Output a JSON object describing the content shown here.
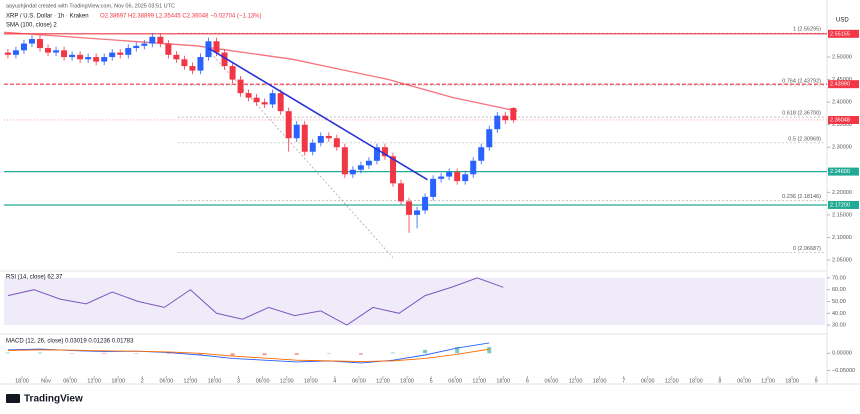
{
  "chart_data": {
    "type": "candlestick",
    "credit": "aayushjindal created with TradingView.com, Nov 06, 2025 03:51 UTC",
    "title": "XRP / U.S. Dollar · 1h · Kraken",
    "ohlc_header": "O2.38697 H2.38899 L2.35445 C2.36048 −0.02704 (−1.13%)",
    "sma_label": "SMA (100, close) 2",
    "currency": "USD",
    "brand": "TradingView",
    "up_color": "#2962ff",
    "down_color": "#f23645",
    "xlim": [
      0,
      204.7
    ],
    "xticks": [
      {
        "value": 4.5,
        "label": "18:00"
      },
      {
        "value": 10.5,
        "label": "Nov"
      },
      {
        "value": 16.5,
        "label": "06:00"
      },
      {
        "value": 22.5,
        "label": "12:00"
      },
      {
        "value": 28.5,
        "label": "18:00"
      },
      {
        "value": 34.5,
        "label": "2"
      },
      {
        "value": 40.5,
        "label": "06:00"
      },
      {
        "value": 46.5,
        "label": "12:00"
      },
      {
        "value": 52.5,
        "label": "18:00"
      },
      {
        "value": 58.5,
        "label": "3"
      },
      {
        "value": 64.5,
        "label": "06:00"
      },
      {
        "value": 70.5,
        "label": "12:00"
      },
      {
        "value": 76.5,
        "label": "18:00"
      },
      {
        "value": 82.5,
        "label": "4"
      },
      {
        "value": 88.5,
        "label": "06:00"
      },
      {
        "value": 94.5,
        "label": "12:00"
      },
      {
        "value": 100.5,
        "label": "18:00"
      },
      {
        "value": 106.5,
        "label": "5"
      },
      {
        "value": 112.5,
        "label": "06:00"
      },
      {
        "value": 118.5,
        "label": "12:00"
      },
      {
        "value": 124.5,
        "label": "18:00"
      },
      {
        "value": 130.5,
        "label": "6"
      },
      {
        "value": 136.5,
        "label": "06:00"
      },
      {
        "value": 142.5,
        "label": "12:00"
      },
      {
        "value": 148.5,
        "label": "18:00"
      },
      {
        "value": 154.5,
        "label": "7"
      },
      {
        "value": 160.5,
        "label": "06:00"
      },
      {
        "value": 166.5,
        "label": "12:00"
      },
      {
        "value": 172.5,
        "label": "18:00"
      },
      {
        "value": 178.5,
        "label": "8"
      },
      {
        "value": 184.5,
        "label": "06:00"
      },
      {
        "value": 190.5,
        "label": "12:00"
      },
      {
        "value": 196.5,
        "label": "18:00"
      },
      {
        "value": 202.5,
        "label": "9"
      }
    ],
    "ylim": [
      2.03,
      2.58
    ],
    "yticks": [
      {
        "value": 2.05,
        "label": "2.05000"
      },
      {
        "value": 2.1,
        "label": "2.10000"
      },
      {
        "value": 2.15,
        "label": "2.15000"
      },
      {
        "value": 2.2,
        "label": "2.20000"
      },
      {
        "value": 2.25,
        "label": "2.25000"
      },
      {
        "value": 2.3,
        "label": "2.30000"
      },
      {
        "value": 2.35,
        "label": "2.35000"
      },
      {
        "value": 2.4,
        "label": "2.40000"
      },
      {
        "value": 2.45,
        "label": "2.45000"
      },
      {
        "value": 2.5,
        "label": "2.50000"
      }
    ],
    "x": [
      1,
      3,
      5,
      7,
      9,
      11,
      13,
      15,
      17,
      19,
      21,
      23,
      25,
      27,
      29,
      31,
      33,
      35,
      37,
      39,
      41,
      43,
      45,
      47,
      49,
      51,
      53,
      55,
      57,
      59,
      61,
      63,
      65,
      67,
      69,
      71,
      73,
      75,
      77,
      79,
      81,
      83,
      85,
      87,
      89,
      91,
      93,
      95,
      97,
      99,
      101,
      103,
      105,
      107,
      109,
      111,
      113,
      115,
      117,
      119,
      121,
      123,
      125,
      127
    ],
    "open": [
      2.51,
      2.505,
      2.515,
      2.53,
      2.54,
      2.52,
      2.51,
      2.515,
      2.5,
      2.505,
      2.495,
      2.5,
      2.49,
      2.5,
      2.51,
      2.505,
      2.52,
      2.525,
      2.53,
      2.545,
      2.53,
      2.505,
      2.495,
      2.48,
      2.47,
      2.5,
      2.535,
      2.51,
      2.48,
      2.45,
      2.42,
      2.41,
      2.4,
      2.395,
      2.42,
      2.38,
      2.32,
      2.35,
      2.29,
      2.31,
      2.325,
      2.32,
      2.3,
      2.24,
      2.25,
      2.26,
      2.27,
      2.3,
      2.28,
      2.22,
      2.18,
      2.15,
      2.16,
      2.19,
      2.23,
      2.235,
      2.245,
      2.225,
      2.24,
      2.27,
      2.3,
      2.34,
      2.37,
      2.387
    ],
    "high": [
      2.518,
      2.523,
      2.538,
      2.548,
      2.548,
      2.528,
      2.523,
      2.523,
      2.513,
      2.513,
      2.508,
      2.508,
      2.508,
      2.518,
      2.518,
      2.528,
      2.533,
      2.538,
      2.553,
      2.553,
      2.538,
      2.513,
      2.503,
      2.488,
      2.508,
      2.543,
      2.543,
      2.518,
      2.488,
      2.458,
      2.428,
      2.418,
      2.408,
      2.428,
      2.428,
      2.388,
      2.358,
      2.358,
      2.318,
      2.333,
      2.333,
      2.328,
      2.308,
      2.258,
      2.268,
      2.278,
      2.308,
      2.308,
      2.288,
      2.228,
      2.188,
      2.168,
      2.198,
      2.238,
      2.243,
      2.253,
      2.253,
      2.248,
      2.278,
      2.308,
      2.348,
      2.378,
      2.378,
      2.389
    ],
    "low": [
      2.497,
      2.497,
      2.507,
      2.522,
      2.512,
      2.502,
      2.502,
      2.492,
      2.492,
      2.487,
      2.487,
      2.482,
      2.482,
      2.492,
      2.497,
      2.497,
      2.512,
      2.517,
      2.522,
      2.522,
      2.497,
      2.487,
      2.472,
      2.462,
      2.462,
      2.492,
      2.502,
      2.472,
      2.442,
      2.412,
      2.402,
      2.392,
      2.387,
      2.387,
      2.372,
      2.29,
      2.312,
      2.282,
      2.282,
      2.302,
      2.312,
      2.292,
      2.232,
      2.232,
      2.242,
      2.252,
      2.262,
      2.272,
      2.212,
      2.172,
      2.11,
      2.12,
      2.152,
      2.182,
      2.222,
      2.227,
      2.217,
      2.217,
      2.232,
      2.262,
      2.292,
      2.332,
      2.352,
      2.354
    ],
    "close": [
      2.505,
      2.515,
      2.53,
      2.54,
      2.52,
      2.51,
      2.515,
      2.5,
      2.505,
      2.495,
      2.5,
      2.49,
      2.5,
      2.51,
      2.505,
      2.52,
      2.525,
      2.53,
      2.545,
      2.53,
      2.505,
      2.495,
      2.48,
      2.47,
      2.5,
      2.535,
      2.51,
      2.48,
      2.45,
      2.42,
      2.41,
      2.4,
      2.395,
      2.42,
      2.38,
      2.32,
      2.35,
      2.29,
      2.31,
      2.325,
      2.32,
      2.3,
      2.24,
      2.25,
      2.26,
      2.27,
      2.3,
      2.28,
      2.22,
      2.18,
      2.15,
      2.16,
      2.19,
      2.23,
      2.235,
      2.245,
      2.225,
      2.24,
      2.27,
      2.3,
      2.34,
      2.37,
      2.36,
      2.36
    ],
    "sma": {
      "color": "#f23645",
      "x": [
        0,
        8,
        16,
        24,
        32,
        40,
        48,
        56,
        64,
        72,
        80,
        88,
        96,
        104,
        112,
        120,
        128
      ],
      "values": [
        2.555,
        2.55,
        2.545,
        2.54,
        2.535,
        2.53,
        2.525,
        2.515,
        2.505,
        2.495,
        2.48,
        2.465,
        2.45,
        2.43,
        2.41,
        2.395,
        2.38
      ]
    },
    "trend_line": {
      "color": "#2932d6",
      "x": [
        51,
        105.6
      ],
      "values": [
        2.52,
        2.228
      ]
    },
    "projection_line": {
      "color": "#9e9e9e",
      "x": [
        51,
        97
      ],
      "values": [
        2.515,
        2.055
      ]
    },
    "levels": [
      {
        "value": 2.55155,
        "label": "2.55155",
        "color": "#f23645",
        "dashed": false
      },
      {
        "value": 2.4399,
        "label": "2.43990",
        "color": "#f23645",
        "dashed": true
      },
      {
        "value": 2.246,
        "label": "2.24600",
        "color": "#22ab94",
        "dashed": false
      },
      {
        "value": 2.172,
        "label": "2.17200",
        "color": "#22ab94",
        "dashed": false
      }
    ],
    "fib": {
      "color": "#9e9e9e",
      "levels": [
        {
          "value": 2.55295,
          "label": "1 (2.55295)"
        },
        {
          "value": 2.43792,
          "label": "0.764 (2.43792)"
        },
        {
          "value": 2.367,
          "label": "0.618 (2.36700)"
        },
        {
          "value": 2.30969,
          "label": "0.5 (2.30969)"
        },
        {
          "value": 2.18146,
          "label": "0.236 (2.18146)"
        },
        {
          "value": 2.06687,
          "label": "0 (2.06687)"
        }
      ]
    },
    "last_price": {
      "value": 2.36048,
      "label": "2.36048"
    },
    "rsi": {
      "title": "RSI (14, close) 62.37",
      "color": "#7e57c2",
      "ylim": [
        25,
        75
      ],
      "band": [
        30,
        70
      ],
      "yticks": [
        {
          "value": 30,
          "label": "30.00"
        },
        {
          "value": 40,
          "label": "40.00"
        },
        {
          "value": 50,
          "label": "50.00"
        },
        {
          "value": 60,
          "label": "60.00"
        },
        {
          "value": 70,
          "label": "70.00"
        }
      ],
      "x": [
        1,
        7.5,
        14,
        20.5,
        27,
        33.5,
        40,
        46.5,
        53,
        59.5,
        66,
        72.5,
        79,
        85.5,
        92,
        98.5,
        105,
        111.5,
        118,
        124.5
      ],
      "values": [
        55,
        60,
        52,
        48,
        58,
        50,
        45,
        60,
        40,
        35,
        45,
        38,
        42,
        30,
        45,
        40,
        55,
        62,
        70,
        62
      ]
    },
    "macd": {
      "title": "MACD (12, 26, close) 0.03019 0.01236 0.01783",
      "ylim": [
        -0.06,
        0.05
      ],
      "yticks": [
        {
          "value": -0.05,
          "label": "−0.05000"
        },
        {
          "value": 0,
          "label": "0.00000"
        }
      ],
      "x": [
        1,
        9,
        17,
        25,
        33,
        41,
        49,
        57,
        65,
        73,
        81,
        89,
        97,
        105,
        113,
        121
      ],
      "series": [
        {
          "name": "MACD",
          "color": "#2962ff",
          "values": [
            0.01,
            0.012,
            0.008,
            0.005,
            0.006,
            0.002,
            -0.005,
            -0.015,
            -0.02,
            -0.025,
            -0.022,
            -0.028,
            -0.02,
            -0.005,
            0.015,
            0.03
          ]
        },
        {
          "name": "Signal",
          "color": "#ff6d00",
          "values": [
            0.008,
            0.01,
            0.009,
            0.007,
            0.006,
            0.004,
            0,
            -0.008,
            -0.014,
            -0.02,
            -0.022,
            -0.024,
            -0.022,
            -0.015,
            -0.003,
            0.012
          ]
        }
      ],
      "histogram": [
        0.002,
        0.002,
        -0.001,
        -0.002,
        0,
        -0.002,
        -0.005,
        -0.007,
        -0.006,
        -0.005,
        0,
        -0.004,
        0.002,
        0.01,
        0.018,
        0.018
      ]
    }
  }
}
